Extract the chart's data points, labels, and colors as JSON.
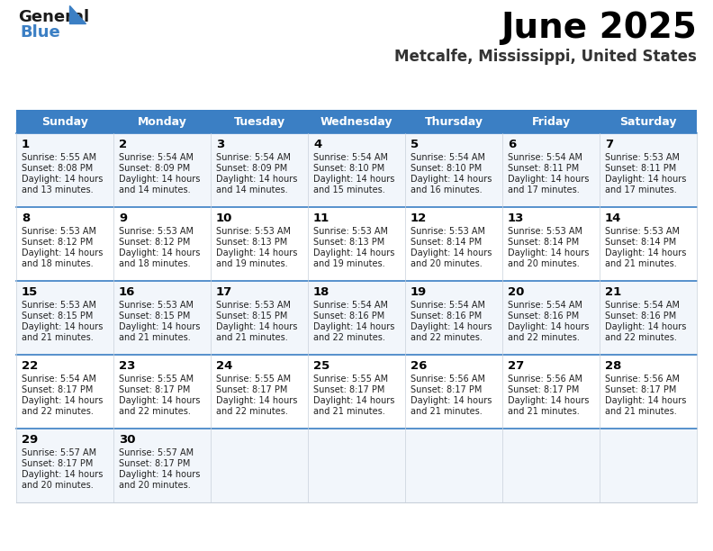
{
  "title": "June 2025",
  "subtitle": "Metcalfe, Mississippi, United States",
  "header_color": "#3b7fc4",
  "header_text_color": "#ffffff",
  "row_bg_even": "#f2f6fb",
  "row_bg_odd": "#ffffff",
  "border_color": "#3b7fc4",
  "cell_border_color": "#c8d0da",
  "day_names": [
    "Sunday",
    "Monday",
    "Tuesday",
    "Wednesday",
    "Thursday",
    "Friday",
    "Saturday"
  ],
  "days": [
    {
      "day": 1,
      "col": 0,
      "row": 0,
      "sunrise": "5:55 AM",
      "sunset": "8:08 PM",
      "daylight_h": "14 hours",
      "daylight_m": "and 13 minutes."
    },
    {
      "day": 2,
      "col": 1,
      "row": 0,
      "sunrise": "5:54 AM",
      "sunset": "8:09 PM",
      "daylight_h": "14 hours",
      "daylight_m": "and 14 minutes."
    },
    {
      "day": 3,
      "col": 2,
      "row": 0,
      "sunrise": "5:54 AM",
      "sunset": "8:09 PM",
      "daylight_h": "14 hours",
      "daylight_m": "and 14 minutes."
    },
    {
      "day": 4,
      "col": 3,
      "row": 0,
      "sunrise": "5:54 AM",
      "sunset": "8:10 PM",
      "daylight_h": "14 hours",
      "daylight_m": "and 15 minutes."
    },
    {
      "day": 5,
      "col": 4,
      "row": 0,
      "sunrise": "5:54 AM",
      "sunset": "8:10 PM",
      "daylight_h": "14 hours",
      "daylight_m": "and 16 minutes."
    },
    {
      "day": 6,
      "col": 5,
      "row": 0,
      "sunrise": "5:54 AM",
      "sunset": "8:11 PM",
      "daylight_h": "14 hours",
      "daylight_m": "and 17 minutes."
    },
    {
      "day": 7,
      "col": 6,
      "row": 0,
      "sunrise": "5:53 AM",
      "sunset": "8:11 PM",
      "daylight_h": "14 hours",
      "daylight_m": "and 17 minutes."
    },
    {
      "day": 8,
      "col": 0,
      "row": 1,
      "sunrise": "5:53 AM",
      "sunset": "8:12 PM",
      "daylight_h": "14 hours",
      "daylight_m": "and 18 minutes."
    },
    {
      "day": 9,
      "col": 1,
      "row": 1,
      "sunrise": "5:53 AM",
      "sunset": "8:12 PM",
      "daylight_h": "14 hours",
      "daylight_m": "and 18 minutes."
    },
    {
      "day": 10,
      "col": 2,
      "row": 1,
      "sunrise": "5:53 AM",
      "sunset": "8:13 PM",
      "daylight_h": "14 hours",
      "daylight_m": "and 19 minutes."
    },
    {
      "day": 11,
      "col": 3,
      "row": 1,
      "sunrise": "5:53 AM",
      "sunset": "8:13 PM",
      "daylight_h": "14 hours",
      "daylight_m": "and 19 minutes."
    },
    {
      "day": 12,
      "col": 4,
      "row": 1,
      "sunrise": "5:53 AM",
      "sunset": "8:14 PM",
      "daylight_h": "14 hours",
      "daylight_m": "and 20 minutes."
    },
    {
      "day": 13,
      "col": 5,
      "row": 1,
      "sunrise": "5:53 AM",
      "sunset": "8:14 PM",
      "daylight_h": "14 hours",
      "daylight_m": "and 20 minutes."
    },
    {
      "day": 14,
      "col": 6,
      "row": 1,
      "sunrise": "5:53 AM",
      "sunset": "8:14 PM",
      "daylight_h": "14 hours",
      "daylight_m": "and 21 minutes."
    },
    {
      "day": 15,
      "col": 0,
      "row": 2,
      "sunrise": "5:53 AM",
      "sunset": "8:15 PM",
      "daylight_h": "14 hours",
      "daylight_m": "and 21 minutes."
    },
    {
      "day": 16,
      "col": 1,
      "row": 2,
      "sunrise": "5:53 AM",
      "sunset": "8:15 PM",
      "daylight_h": "14 hours",
      "daylight_m": "and 21 minutes."
    },
    {
      "day": 17,
      "col": 2,
      "row": 2,
      "sunrise": "5:53 AM",
      "sunset": "8:15 PM",
      "daylight_h": "14 hours",
      "daylight_m": "and 21 minutes."
    },
    {
      "day": 18,
      "col": 3,
      "row": 2,
      "sunrise": "5:54 AM",
      "sunset": "8:16 PM",
      "daylight_h": "14 hours",
      "daylight_m": "and 22 minutes."
    },
    {
      "day": 19,
      "col": 4,
      "row": 2,
      "sunrise": "5:54 AM",
      "sunset": "8:16 PM",
      "daylight_h": "14 hours",
      "daylight_m": "and 22 minutes."
    },
    {
      "day": 20,
      "col": 5,
      "row": 2,
      "sunrise": "5:54 AM",
      "sunset": "8:16 PM",
      "daylight_h": "14 hours",
      "daylight_m": "and 22 minutes."
    },
    {
      "day": 21,
      "col": 6,
      "row": 2,
      "sunrise": "5:54 AM",
      "sunset": "8:16 PM",
      "daylight_h": "14 hours",
      "daylight_m": "and 22 minutes."
    },
    {
      "day": 22,
      "col": 0,
      "row": 3,
      "sunrise": "5:54 AM",
      "sunset": "8:17 PM",
      "daylight_h": "14 hours",
      "daylight_m": "and 22 minutes."
    },
    {
      "day": 23,
      "col": 1,
      "row": 3,
      "sunrise": "5:55 AM",
      "sunset": "8:17 PM",
      "daylight_h": "14 hours",
      "daylight_m": "and 22 minutes."
    },
    {
      "day": 24,
      "col": 2,
      "row": 3,
      "sunrise": "5:55 AM",
      "sunset": "8:17 PM",
      "daylight_h": "14 hours",
      "daylight_m": "and 22 minutes."
    },
    {
      "day": 25,
      "col": 3,
      "row": 3,
      "sunrise": "5:55 AM",
      "sunset": "8:17 PM",
      "daylight_h": "14 hours",
      "daylight_m": "and 21 minutes."
    },
    {
      "day": 26,
      "col": 4,
      "row": 3,
      "sunrise": "5:56 AM",
      "sunset": "8:17 PM",
      "daylight_h": "14 hours",
      "daylight_m": "and 21 minutes."
    },
    {
      "day": 27,
      "col": 5,
      "row": 3,
      "sunrise": "5:56 AM",
      "sunset": "8:17 PM",
      "daylight_h": "14 hours",
      "daylight_m": "and 21 minutes."
    },
    {
      "day": 28,
      "col": 6,
      "row": 3,
      "sunrise": "5:56 AM",
      "sunset": "8:17 PM",
      "daylight_h": "14 hours",
      "daylight_m": "and 21 minutes."
    },
    {
      "day": 29,
      "col": 0,
      "row": 4,
      "sunrise": "5:57 AM",
      "sunset": "8:17 PM",
      "daylight_h": "14 hours",
      "daylight_m": "and 20 minutes."
    },
    {
      "day": 30,
      "col": 1,
      "row": 4,
      "sunrise": "5:57 AM",
      "sunset": "8:17 PM",
      "daylight_h": "14 hours",
      "daylight_m": "and 20 minutes."
    }
  ],
  "num_rows": 5,
  "num_cols": 7,
  "logo_general_color": "#1a1a1a",
  "logo_blue_color": "#3b7fc4",
  "logo_triangle_color": "#3b7fc4"
}
